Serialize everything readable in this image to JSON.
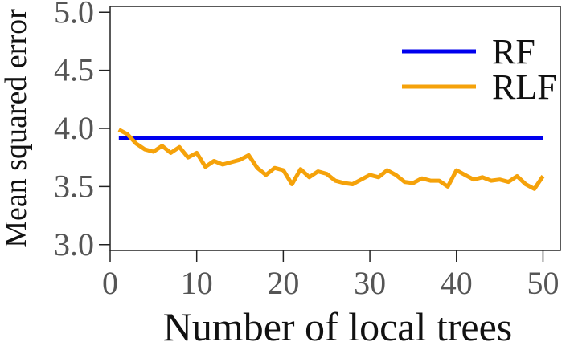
{
  "chart_data": {
    "type": "line",
    "title": "",
    "xlabel": "Number of local trees",
    "ylabel": "Mean squared error",
    "xlim": [
      0,
      52
    ],
    "ylim": [
      2.95,
      5.05
    ],
    "x_ticks": [
      0,
      10,
      20,
      30,
      40,
      50
    ],
    "x_tick_labels": [
      "0",
      "10",
      "20",
      "30",
      "40",
      "50"
    ],
    "y_ticks": [
      3.0,
      3.5,
      4.0,
      4.5,
      5.0
    ],
    "y_tick_labels": [
      "3.0",
      "3.5",
      "4.0",
      "4.5",
      "5.0"
    ],
    "grid": false,
    "legend": "top-right",
    "series": [
      {
        "name": "RF",
        "color": "#0000ee",
        "x": [
          1,
          50
        ],
        "y": [
          3.92,
          3.92
        ]
      },
      {
        "name": "RLF",
        "color": "#f5a20a",
        "x": [
          1,
          2,
          3,
          4,
          5,
          6,
          7,
          8,
          9,
          10,
          11,
          12,
          13,
          14,
          15,
          16,
          17,
          18,
          19,
          20,
          21,
          22,
          23,
          24,
          25,
          26,
          27,
          28,
          29,
          30,
          31,
          32,
          33,
          34,
          35,
          36,
          37,
          38,
          39,
          40,
          41,
          42,
          43,
          44,
          45,
          46,
          47,
          48,
          49,
          50
        ],
        "y": [
          3.99,
          3.95,
          3.87,
          3.82,
          3.8,
          3.85,
          3.79,
          3.84,
          3.75,
          3.79,
          3.67,
          3.72,
          3.69,
          3.71,
          3.73,
          3.77,
          3.66,
          3.6,
          3.66,
          3.64,
          3.52,
          3.65,
          3.58,
          3.63,
          3.61,
          3.55,
          3.53,
          3.52,
          3.56,
          3.6,
          3.58,
          3.64,
          3.6,
          3.54,
          3.53,
          3.57,
          3.55,
          3.55,
          3.5,
          3.64,
          3.6,
          3.56,
          3.58,
          3.55,
          3.56,
          3.54,
          3.59,
          3.52,
          3.48,
          3.59
        ]
      }
    ]
  }
}
